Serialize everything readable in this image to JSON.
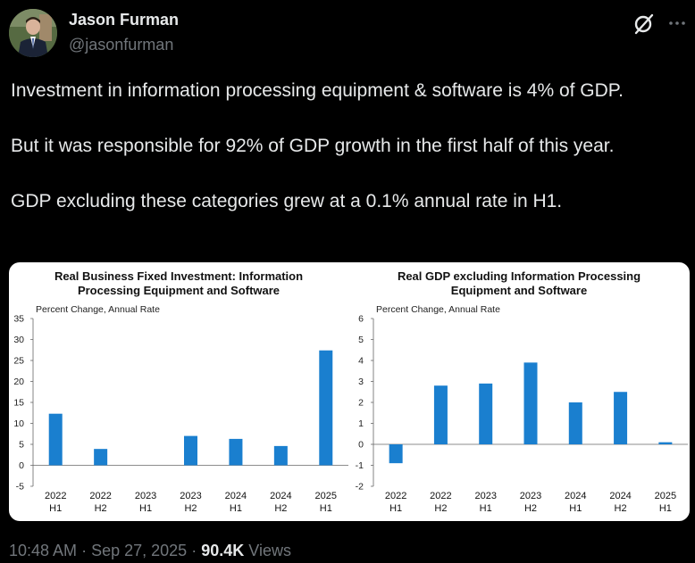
{
  "author": {
    "name": "Jason Furman",
    "handle": "@jasonfurman"
  },
  "icons": {
    "grok": "grok-icon",
    "more": "more-options-icon"
  },
  "tweet": {
    "paragraphs": [
      "Investment in information processing equipment & software is 4% of GDP.",
      "But it was responsible for 92% of GDP growth in the first half of this year.",
      "GDP excluding these categories grew at a 0.1% annual rate in H1."
    ]
  },
  "meta": {
    "time": "10:48 AM",
    "date": "Sep 27, 2025",
    "views_count": "90.4K",
    "views_label": "Views",
    "separator": "·"
  },
  "colors": {
    "background": "#000000",
    "bar": "#1a7fcf",
    "text": "#e7e9ea",
    "muted": "#71767b"
  },
  "chart_data": [
    {
      "type": "bar",
      "title_lines": [
        "Real Business Fixed Investment: Information",
        "Processing Equipment and Software"
      ],
      "ylabel": "Percent Change, Annual Rate",
      "categories": [
        [
          "2022",
          "H1"
        ],
        [
          "2022",
          "H2"
        ],
        [
          "2023",
          "H1"
        ],
        [
          "2023",
          "H2"
        ],
        [
          "2024",
          "H1"
        ],
        [
          "2024",
          "H2"
        ],
        [
          "2025",
          "H1"
        ]
      ],
      "values": [
        12.3,
        3.9,
        0.0,
        7.0,
        6.3,
        4.6,
        27.4
      ],
      "ylim": [
        -5,
        35
      ],
      "yticks": [
        "-5",
        "0",
        "5",
        "10",
        "15",
        "20",
        "25",
        "30",
        "35"
      ],
      "ytick_values": [
        -5,
        0,
        5,
        10,
        15,
        20,
        25,
        30,
        35
      ]
    },
    {
      "type": "bar",
      "title_lines": [
        "Real GDP excluding Information Processing",
        "Equipment and Software"
      ],
      "ylabel": "Percent Change, Annual Rate",
      "categories": [
        [
          "2022",
          "H1"
        ],
        [
          "2022",
          "H2"
        ],
        [
          "2023",
          "H1"
        ],
        [
          "2023",
          "H2"
        ],
        [
          "2024",
          "H1"
        ],
        [
          "2024",
          "H2"
        ],
        [
          "2025",
          "H1"
        ]
      ],
      "values": [
        -0.9,
        2.8,
        2.9,
        3.9,
        2.0,
        2.5,
        0.1
      ],
      "ylim": [
        -2,
        6
      ],
      "yticks": [
        "-2",
        "-1",
        "0",
        "1",
        "2",
        "3",
        "4",
        "5",
        "6"
      ],
      "ytick_values": [
        -2,
        -1,
        0,
        1,
        2,
        3,
        4,
        5,
        6
      ]
    }
  ]
}
